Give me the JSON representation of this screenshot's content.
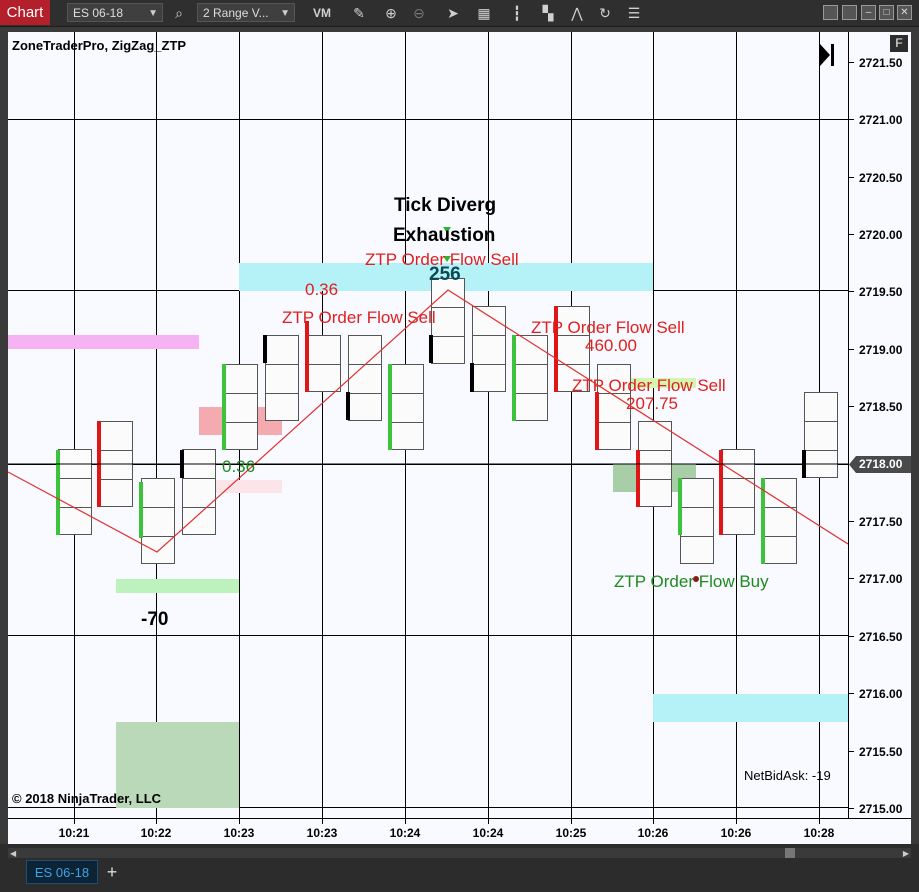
{
  "toolbar": {
    "tab_label": "Chart",
    "instrument": "ES 06-18",
    "interval": "2 Range V...",
    "vm_label": "VM"
  },
  "chart": {
    "title": "ZoneTraderPro, ZigZag_ZTP",
    "copyright": "© 2018 NinjaTrader, LLC",
    "net_bid_ask": "NetBidAsk: -19",
    "f_button": "F",
    "current_price": "2718.00"
  },
  "price_labels": [
    "2721.50",
    "2721.00",
    "2720.50",
    "2720.00",
    "2719.50",
    "2719.00",
    "2718.50",
    "2718.00",
    "2717.50",
    "2717.00",
    "2716.50",
    "2716.00",
    "2715.50",
    "2715.00"
  ],
  "time_labels": [
    "10:21",
    "10:22",
    "10:23",
    "10:23",
    "10:24",
    "10:24",
    "10:25",
    "10:26",
    "10:26",
    "10:28"
  ],
  "annotations": {
    "tick_diverg": "Tick Diverg",
    "exhaustion": "Exhaustion",
    "flow_sell_1": "ZTP Order Flow Sell",
    "flow_sell_2": "ZTP Order Flow Sell",
    "flow_sell_3": "ZTP Order Flow Sell",
    "flow_sell_4": "ZTP Order Flow Sell",
    "flow_buy": "ZTP Order Flow Buy",
    "val_036_red": "0.36",
    "val_036_green": "0.36",
    "val_256": "256",
    "val_460": "460.00",
    "val_20775": "207.75",
    "val_neg70": "-70"
  },
  "bottom": {
    "instrument_tab": "ES 06-18",
    "add_tab": "+"
  },
  "colors": {
    "sell": "#e02020",
    "buy": "#1f8a1f",
    "zigzag": "#e03030",
    "bar_up": "#3cc23c",
    "bar_down": "#e01515"
  }
}
